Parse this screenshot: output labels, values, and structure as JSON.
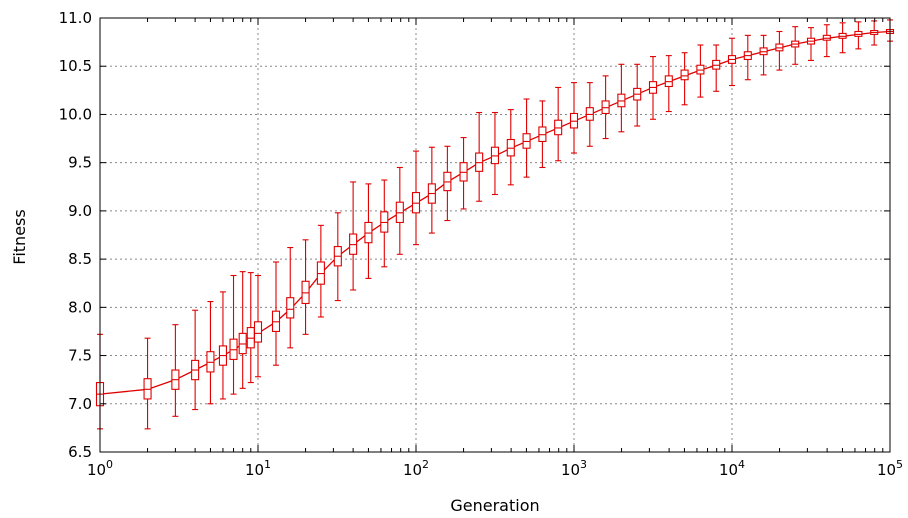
{
  "chart_data": {
    "type": "line",
    "title": "",
    "xlabel": "Generation",
    "ylabel": "Fitness",
    "xscale": "log",
    "xlim": [
      1,
      100000
    ],
    "ylim": [
      6.5,
      11.0
    ],
    "grid": true,
    "color": "#e00000",
    "x_ticks": [
      {
        "value": 1,
        "base": "10",
        "exp": "0"
      },
      {
        "value": 10,
        "base": "10",
        "exp": "1"
      },
      {
        "value": 100,
        "base": "10",
        "exp": "2"
      },
      {
        "value": 1000,
        "base": "10",
        "exp": "3"
      },
      {
        "value": 10000,
        "base": "10",
        "exp": "4"
      },
      {
        "value": 100000,
        "base": "10",
        "exp": "5"
      }
    ],
    "y_ticks": [
      "6.5",
      "7.0",
      "7.5",
      "8.0",
      "8.5",
      "9.0",
      "9.5",
      "10.0",
      "10.5",
      "11.0"
    ],
    "series": [
      {
        "x": [
          1,
          2,
          3,
          4,
          5,
          6,
          7,
          8,
          9,
          10,
          13,
          16,
          20,
          25,
          32,
          40,
          50,
          63,
          79,
          100,
          126,
          158,
          200,
          251,
          316,
          398,
          501,
          631,
          794,
          1000,
          1259,
          1585,
          1995,
          2512,
          3162,
          3981,
          5012,
          6310,
          7943,
          10000,
          12589,
          15849,
          19953,
          25119,
          31623,
          39811,
          50119,
          63096,
          79433,
          100000
        ],
        "median": [
          7.1,
          7.15,
          7.25,
          7.35,
          7.43,
          7.5,
          7.56,
          7.62,
          7.68,
          7.73,
          7.85,
          7.98,
          8.15,
          8.35,
          8.53,
          8.65,
          8.77,
          8.88,
          8.98,
          9.08,
          9.18,
          9.3,
          9.4,
          9.5,
          9.57,
          9.65,
          9.72,
          9.79,
          9.86,
          9.93,
          10.0,
          10.07,
          10.14,
          10.21,
          10.28,
          10.34,
          10.4,
          10.46,
          10.51,
          10.57,
          10.61,
          10.65,
          10.69,
          10.73,
          10.76,
          10.79,
          10.81,
          10.83,
          10.85,
          10.86
        ],
        "q1": [
          6.98,
          7.05,
          7.15,
          7.25,
          7.33,
          7.4,
          7.46,
          7.52,
          7.58,
          7.64,
          7.75,
          7.89,
          8.04,
          8.24,
          8.43,
          8.55,
          8.67,
          8.78,
          8.88,
          8.98,
          9.08,
          9.21,
          9.31,
          9.41,
          9.49,
          9.57,
          9.65,
          9.72,
          9.79,
          9.86,
          9.94,
          10.01,
          10.08,
          10.15,
          10.22,
          10.29,
          10.36,
          10.42,
          10.47,
          10.53,
          10.57,
          10.62,
          10.66,
          10.7,
          10.73,
          10.77,
          10.79,
          10.81,
          10.83,
          10.84
        ],
        "q3": [
          7.22,
          7.26,
          7.35,
          7.45,
          7.54,
          7.6,
          7.67,
          7.73,
          7.79,
          7.85,
          7.96,
          8.1,
          8.27,
          8.47,
          8.63,
          8.76,
          8.88,
          8.99,
          9.09,
          9.19,
          9.28,
          9.4,
          9.5,
          9.6,
          9.66,
          9.74,
          9.8,
          9.87,
          9.94,
          10.01,
          10.07,
          10.14,
          10.21,
          10.27,
          10.34,
          10.4,
          10.46,
          10.51,
          10.56,
          10.61,
          10.65,
          10.69,
          10.73,
          10.76,
          10.79,
          10.82,
          10.84,
          10.86,
          10.87,
          10.88
        ],
        "low": [
          6.74,
          6.74,
          6.87,
          6.94,
          7.0,
          7.05,
          7.1,
          7.16,
          7.22,
          7.28,
          7.4,
          7.58,
          7.72,
          7.9,
          8.07,
          8.18,
          8.3,
          8.42,
          8.55,
          8.65,
          8.77,
          8.9,
          9.02,
          9.1,
          9.17,
          9.27,
          9.35,
          9.45,
          9.52,
          9.6,
          9.67,
          9.75,
          9.82,
          9.88,
          9.95,
          10.03,
          10.1,
          10.18,
          10.24,
          10.3,
          10.36,
          10.41,
          10.46,
          10.52,
          10.56,
          10.6,
          10.64,
          10.68,
          10.72,
          10.76
        ],
        "high": [
          7.72,
          7.68,
          7.82,
          7.97,
          8.06,
          8.16,
          8.33,
          8.37,
          8.36,
          8.33,
          8.47,
          8.62,
          8.7,
          8.85,
          8.98,
          9.3,
          9.28,
          9.32,
          9.45,
          9.62,
          9.66,
          9.67,
          9.76,
          10.02,
          10.02,
          10.05,
          10.16,
          10.14,
          10.28,
          10.33,
          10.33,
          10.4,
          10.52,
          10.52,
          10.6,
          10.61,
          10.64,
          10.72,
          10.72,
          10.79,
          10.82,
          10.82,
          10.86,
          10.91,
          10.9,
          10.93,
          10.95,
          10.96,
          10.97,
          10.98
        ]
      }
    ]
  }
}
